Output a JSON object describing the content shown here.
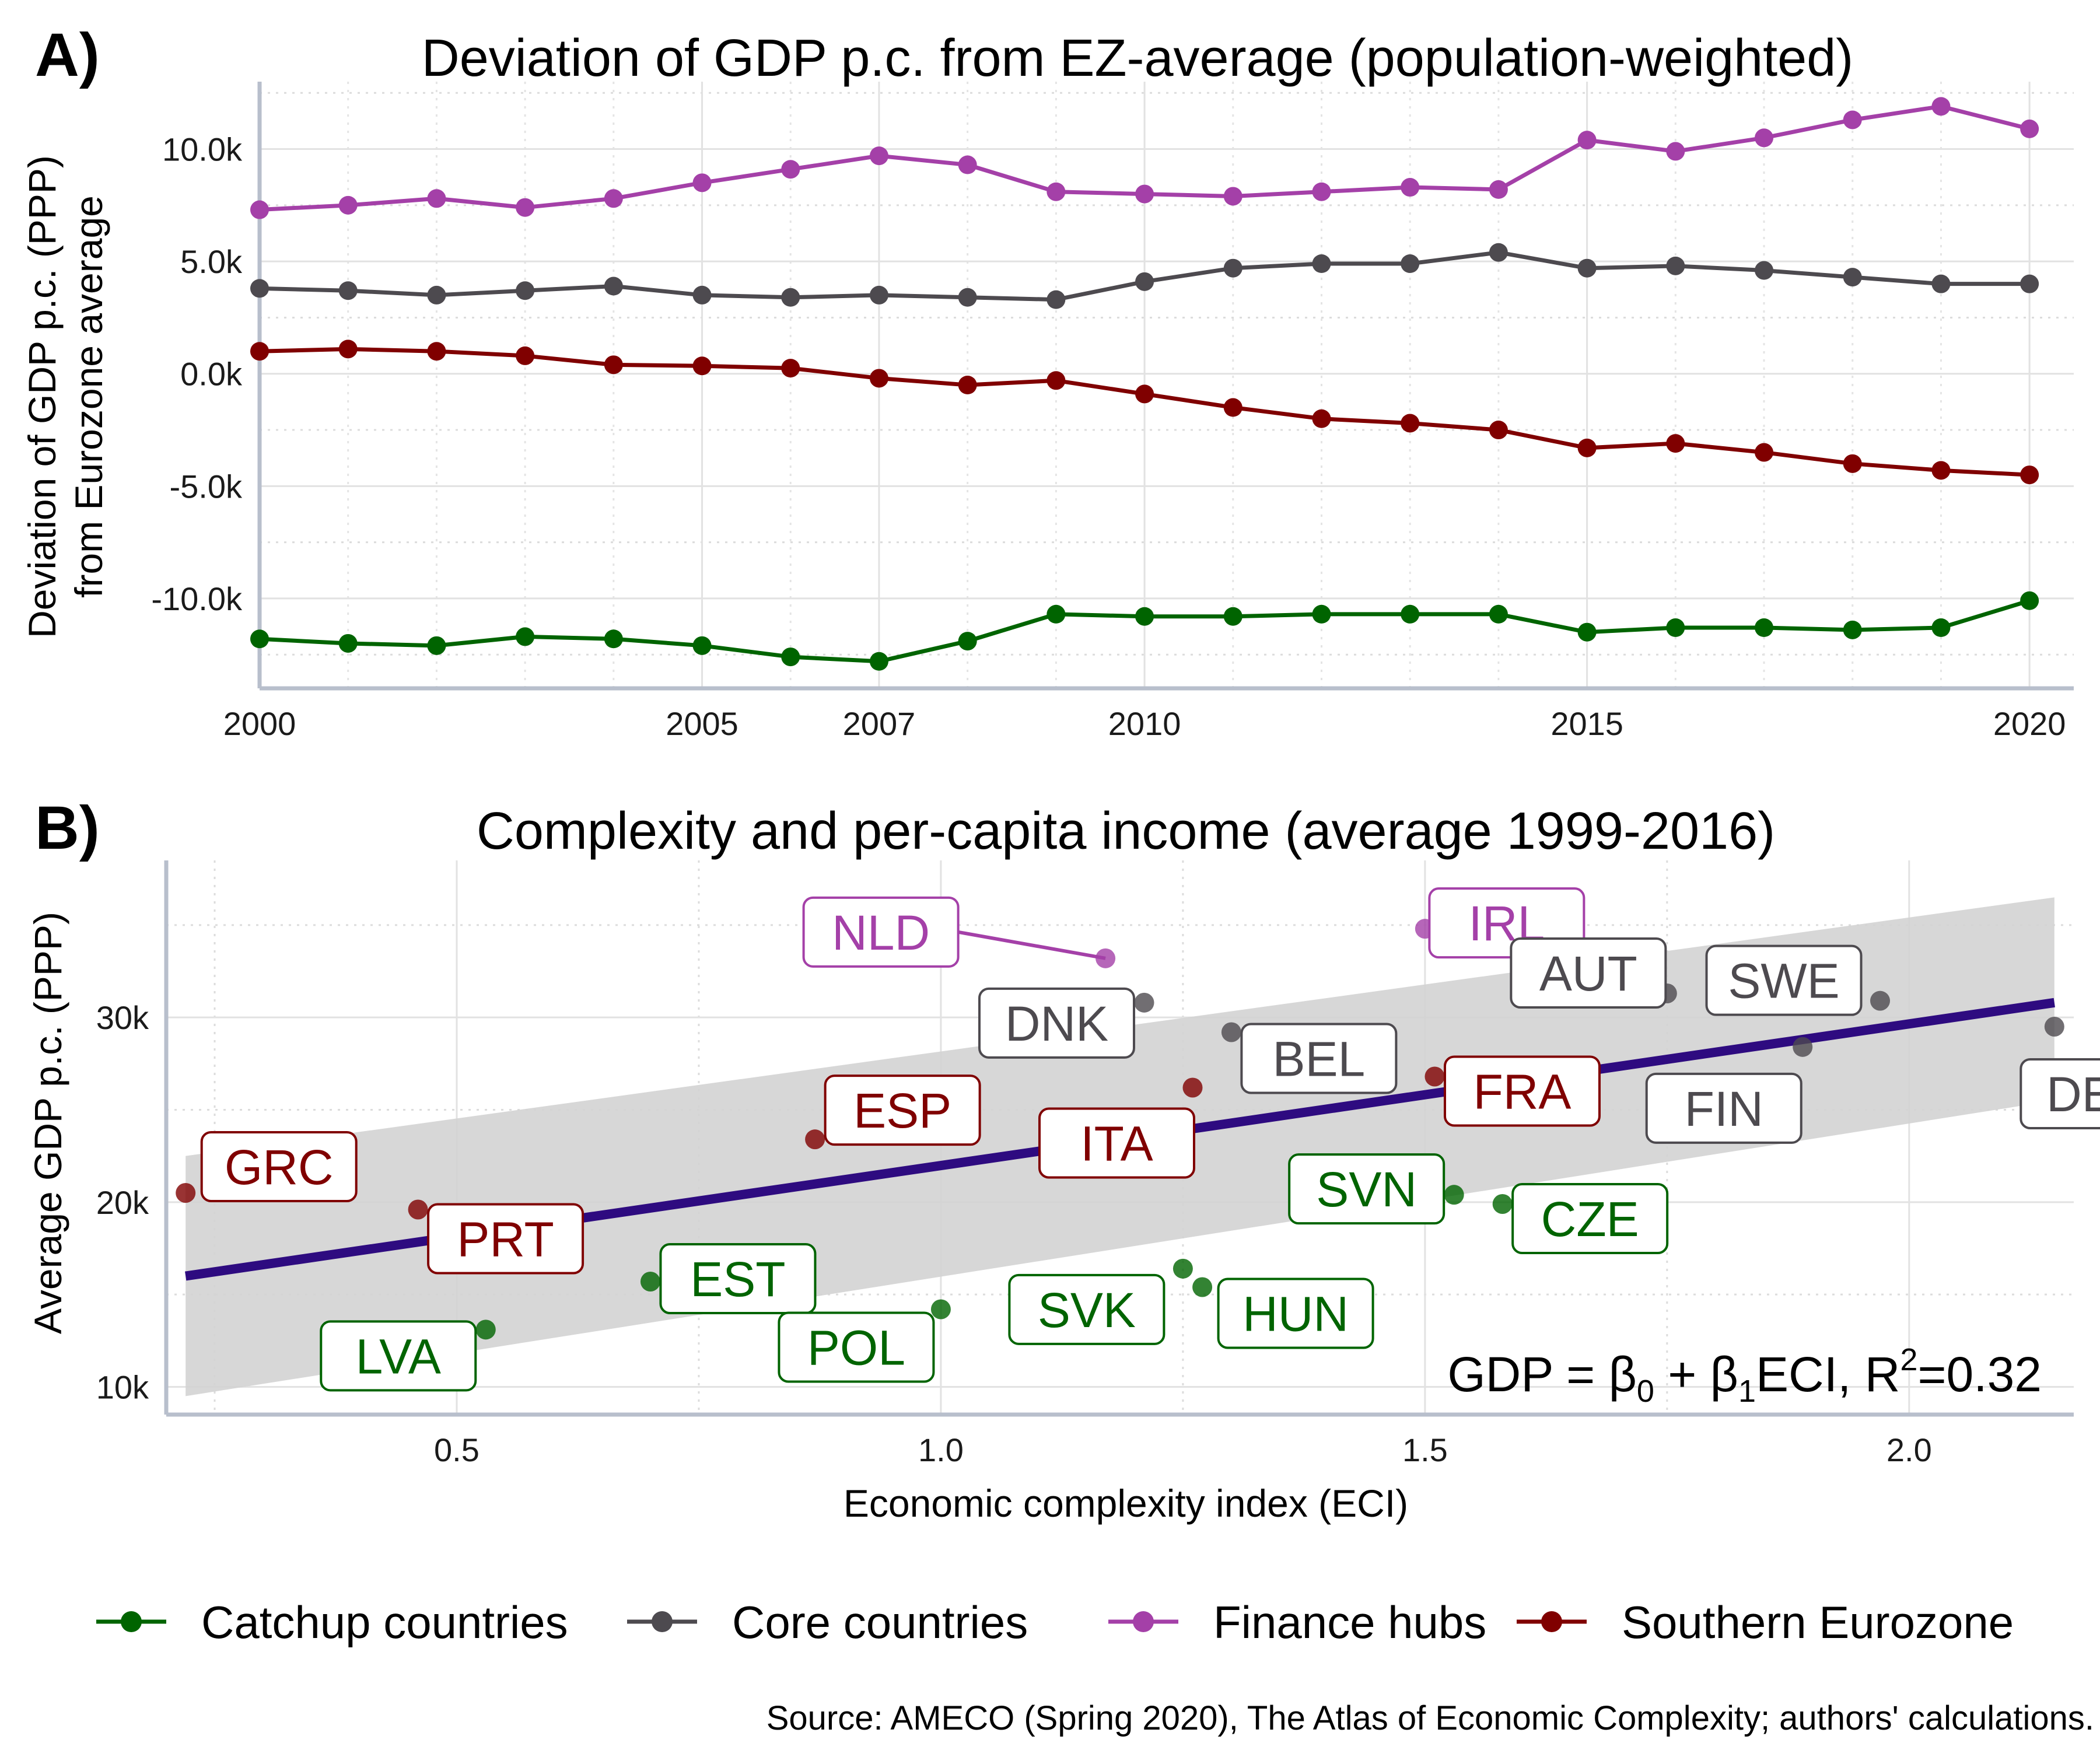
{
  "colors": {
    "catchup": "#006400",
    "core": "#4d4a4f",
    "finance": "#a440a8",
    "south": "#800000",
    "fit": "#2e0b80",
    "band": "#d3d3d3"
  },
  "legend": {
    "items": [
      {
        "key": "catchup",
        "label": "Catchup countries"
      },
      {
        "key": "core",
        "label": "Core countries"
      },
      {
        "key": "finance",
        "label": "Finance hubs"
      },
      {
        "key": "south",
        "label": "Southern Eurozone"
      }
    ]
  },
  "source": "Source: AMECO (Spring 2020), The Atlas of Economic Complexity; authors' calculations.",
  "chart_data": [
    {
      "panel_label": "A)",
      "type": "line",
      "title": "Deviation of GDP p.c. from EZ-average (population-weighted)",
      "ylabel_line1": "Deviation of GDP p.c. (PPP)",
      "ylabel_line2": "from Eurozone average",
      "xlabel": "",
      "xlim": [
        2000,
        2020.5
      ],
      "ylim": [
        -14000,
        13000
      ],
      "x_ticks": [
        2000,
        2005,
        2007,
        2010,
        2015,
        2020
      ],
      "y_ticks": [
        -10000,
        -5000,
        0,
        5000,
        10000
      ],
      "y_tick_labels": [
        "-10.0k",
        "-5.0k",
        "0.0k",
        "5.0k",
        "10.0k"
      ],
      "x": [
        2000,
        2001,
        2002,
        2003,
        2004,
        2005,
        2006,
        2007,
        2008,
        2009,
        2010,
        2011,
        2012,
        2013,
        2014,
        2015,
        2016,
        2017,
        2018,
        2019,
        2020
      ],
      "series": [
        {
          "key": "finance",
          "name": "Finance hubs",
          "values": [
            7300,
            7500,
            7800,
            7400,
            7800,
            8500,
            9100,
            9700,
            9300,
            8100,
            8000,
            7900,
            8100,
            8300,
            8200,
            10400,
            9900,
            10500,
            11300,
            11900,
            10900
          ]
        },
        {
          "key": "core",
          "name": "Core countries",
          "values": [
            3800,
            3700,
            3500,
            3700,
            3900,
            3500,
            3400,
            3500,
            3400,
            3300,
            4100,
            4700,
            4900,
            4900,
            5400,
            4700,
            4800,
            4600,
            4300,
            4000,
            4000
          ]
        },
        {
          "key": "south",
          "name": "Southern Eurozone",
          "values": [
            1000,
            1100,
            1000,
            800,
            400,
            350,
            250,
            -200,
            -500,
            -300,
            -900,
            -1500,
            -2000,
            -2200,
            -2500,
            -3300,
            -3100,
            -3500,
            -4000,
            -4300,
            -4500
          ]
        },
        {
          "key": "catchup",
          "name": "Catchup countries",
          "values": [
            -11800,
            -12000,
            -12100,
            -11700,
            -11800,
            -12100,
            -12600,
            -12800,
            -11900,
            -10700,
            -10800,
            -10800,
            -10700,
            -10700,
            -10700,
            -11500,
            -11300,
            -11300,
            -11400,
            -11300,
            -10100
          ]
        }
      ]
    },
    {
      "panel_label": "B)",
      "type": "scatter",
      "title": "Complexity and per-capita income (average 1999-2016)",
      "xlabel": "Economic complexity index (ECI)",
      "ylabel": "Average GDP p.c. (PPP)",
      "xlim": [
        0.2,
        2.17
      ],
      "ylim": [
        8500,
        38500
      ],
      "x_ticks": [
        0.5,
        1.0,
        1.5,
        2.0
      ],
      "x_tick_labels": [
        "0.5",
        "1.0",
        "1.5",
        "2.0"
      ],
      "y_ticks": [
        10000,
        20000,
        30000
      ],
      "y_tick_labels": [
        "10k",
        "20k",
        "30k"
      ],
      "fit": {
        "x": [
          0.22,
          2.15
        ],
        "y": [
          16000,
          30800
        ],
        "band_lower": [
          9500,
          25500
        ],
        "band_upper": [
          22500,
          36500
        ]
      },
      "formula": {
        "lhs": "GDP = β",
        "sub0": "0",
        "mid": " + β",
        "sub1": "1",
        "mid2": "ECI, R",
        "sup": "2",
        "rhs": "=0.32"
      },
      "points": [
        {
          "code": "NLD",
          "group": "finance",
          "eci": 1.17,
          "gdp": 33200
        },
        {
          "code": "IRL",
          "group": "finance",
          "eci": 1.5,
          "gdp": 34800
        },
        {
          "code": "AUT",
          "group": "core",
          "eci": 1.75,
          "gdp": 31300
        },
        {
          "code": "SWE",
          "group": "core",
          "eci": 1.97,
          "gdp": 30900
        },
        {
          "code": "DNK",
          "group": "core",
          "eci": 1.21,
          "gdp": 30800
        },
        {
          "code": "BEL",
          "group": "core",
          "eci": 1.3,
          "gdp": 29200
        },
        {
          "code": "FIN",
          "group": "core",
          "eci": 1.89,
          "gdp": 28400
        },
        {
          "code": "DEU",
          "group": "core",
          "eci": 2.15,
          "gdp": 29500
        },
        {
          "code": "FRA",
          "group": "south",
          "eci": 1.51,
          "gdp": 26800
        },
        {
          "code": "ITA",
          "group": "south",
          "eci": 1.26,
          "gdp": 26200
        },
        {
          "code": "ESP",
          "group": "south",
          "eci": 0.87,
          "gdp": 23400
        },
        {
          "code": "GRC",
          "group": "south",
          "eci": 0.22,
          "gdp": 20500
        },
        {
          "code": "PRT",
          "group": "south",
          "eci": 0.46,
          "gdp": 19600
        },
        {
          "code": "SVN",
          "group": "catchup",
          "eci": 1.53,
          "gdp": 20400
        },
        {
          "code": "CZE",
          "group": "catchup",
          "eci": 1.58,
          "gdp": 19900
        },
        {
          "code": "EST",
          "group": "catchup",
          "eci": 0.7,
          "gdp": 15700
        },
        {
          "code": "SVK",
          "group": "catchup",
          "eci": 1.25,
          "gdp": 16400
        },
        {
          "code": "HUN",
          "group": "catchup",
          "eci": 1.27,
          "gdp": 15400
        },
        {
          "code": "POL",
          "group": "catchup",
          "eci": 1.0,
          "gdp": 14200
        },
        {
          "code": "LVA",
          "group": "catchup",
          "eci": 0.53,
          "gdp": 13100
        }
      ]
    }
  ]
}
